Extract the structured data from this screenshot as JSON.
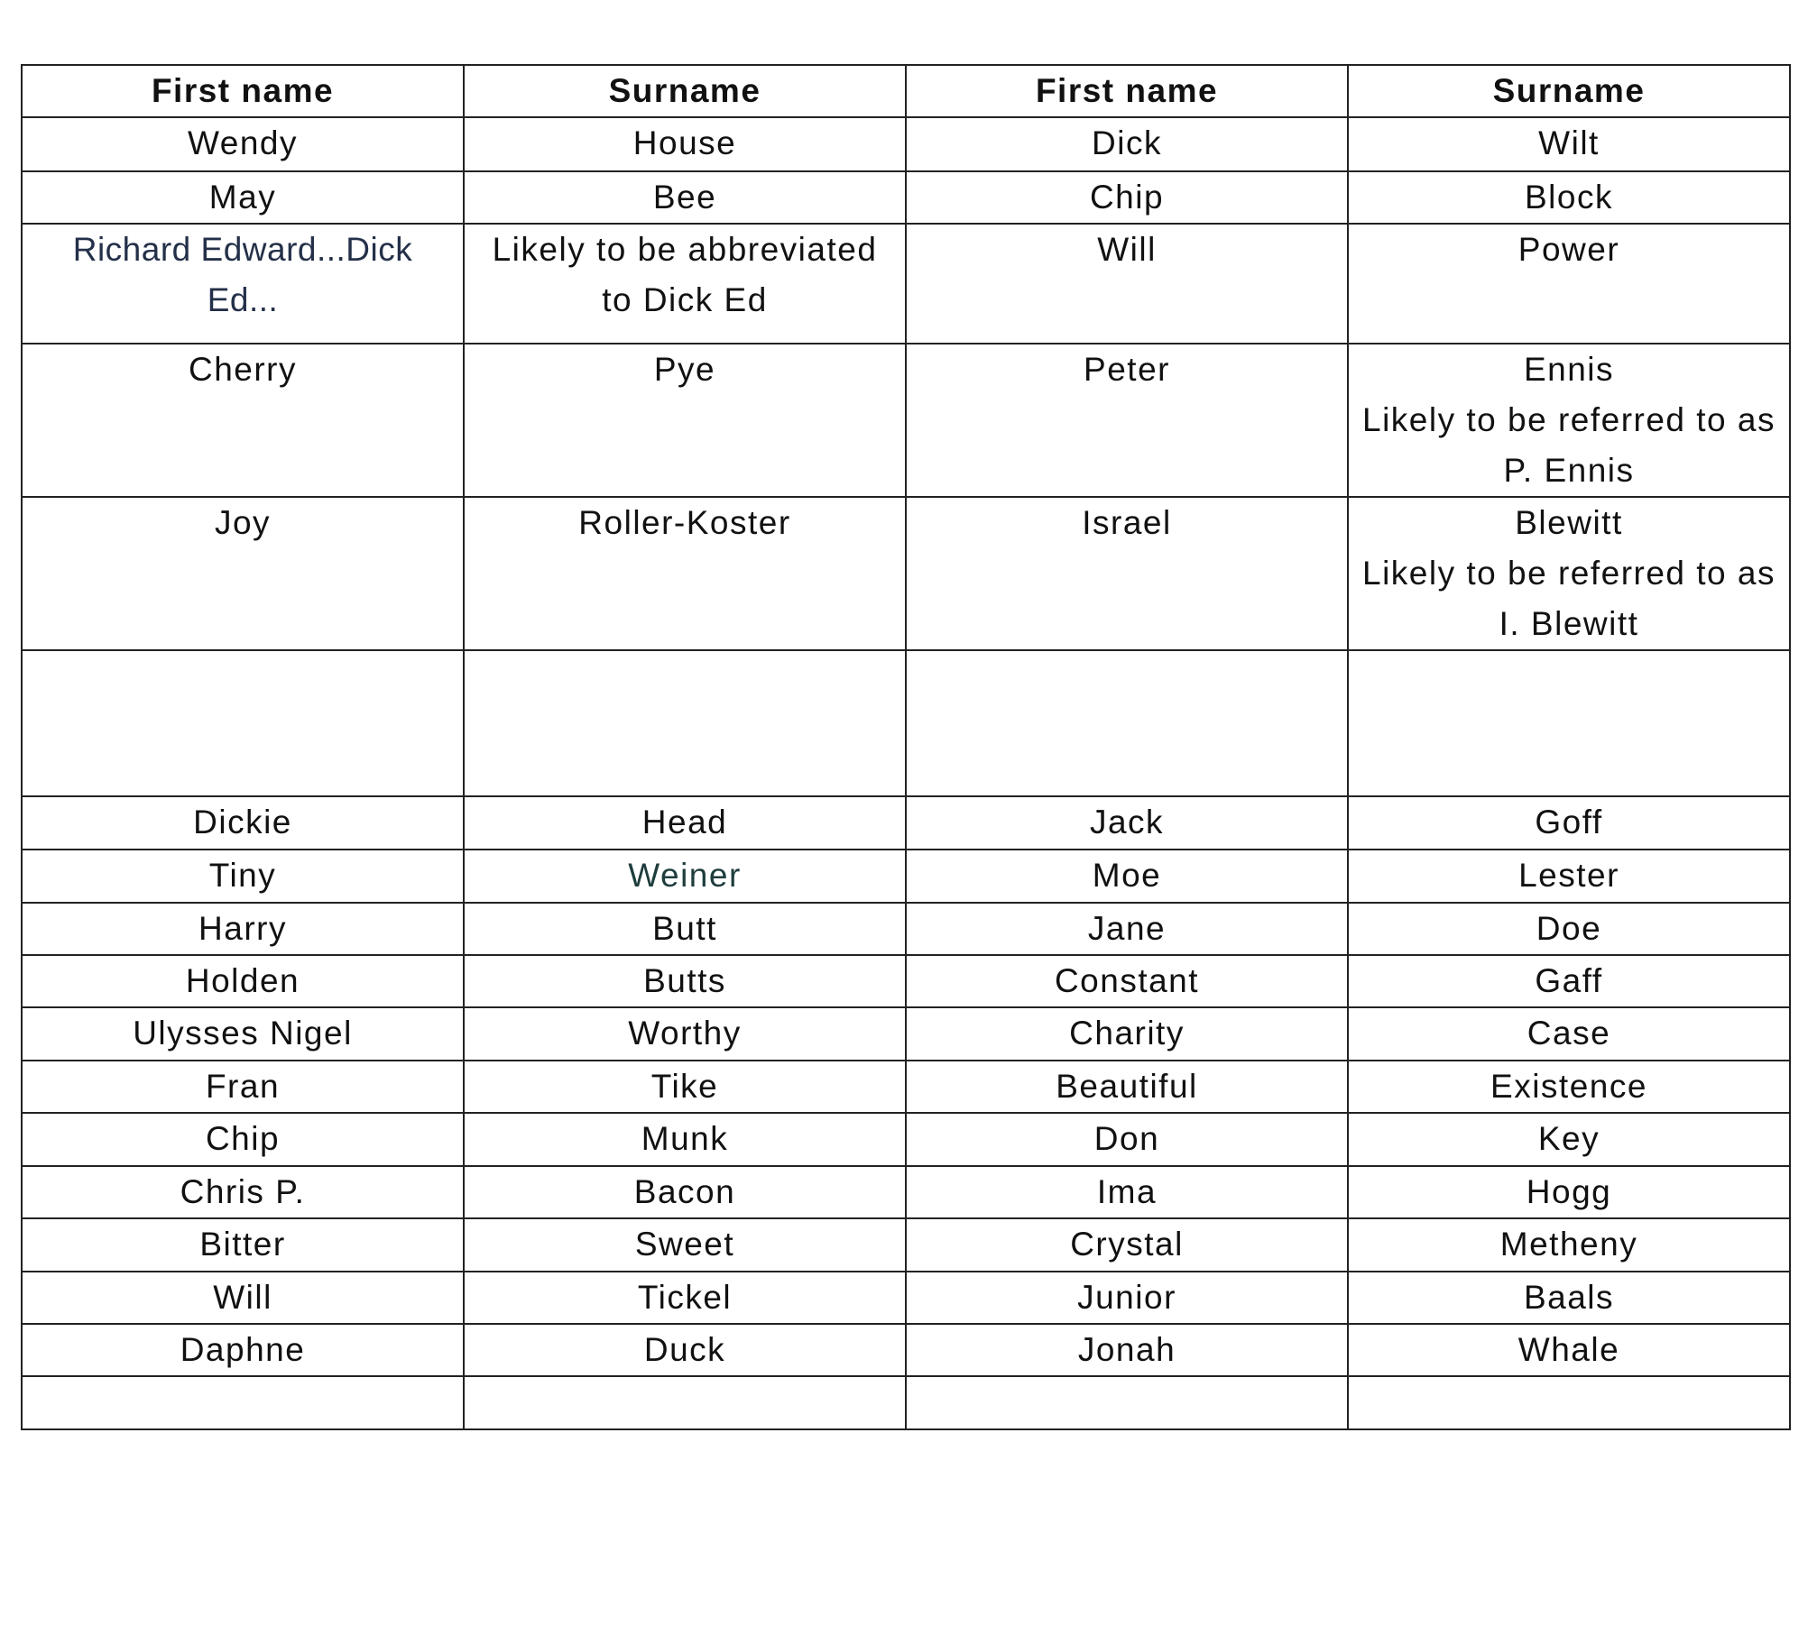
{
  "headers": [
    "First name",
    "Surname",
    "First name",
    "Surname"
  ],
  "rows": [
    [
      "Wendy",
      "House",
      "Dick",
      "Wilt"
    ],
    [
      "May",
      "Bee",
      "Chip",
      "Block"
    ],
    [
      "Richard Edward...Dick Ed...",
      "Likely to be abbreviated to Dick Ed",
      "Will",
      "Power"
    ],
    [
      "Cherry",
      "Pye",
      "Peter",
      "Ennis\nLikely to be referred to as P. Ennis"
    ],
    [
      "Joy",
      "Roller-Koster",
      "Israel",
      "Blewitt\nLikely to be referred to as I. Blewitt"
    ],
    [
      "",
      "",
      "",
      ""
    ],
    [
      "Dickie",
      "Head",
      "Jack",
      "Goff"
    ],
    [
      "Tiny",
      "Weiner",
      "Moe",
      "Lester"
    ],
    [
      "Harry",
      "Butt",
      "Jane",
      "Doe"
    ],
    [
      "Holden",
      "Butts",
      "Constant",
      "Gaff"
    ],
    [
      "Ulysses Nigel",
      "Worthy",
      "Charity",
      "Case"
    ],
    [
      "Fran",
      "Tike",
      "Beautiful",
      "Existence"
    ],
    [
      "Chip",
      "Munk",
      "Don",
      "Key"
    ],
    [
      "Chris P.",
      "Bacon",
      "Ima",
      "Hogg"
    ],
    [
      "Bitter",
      "Sweet",
      "Crystal",
      "Metheny"
    ],
    [
      "Will",
      "Tickel",
      "Junior",
      "Baals"
    ],
    [
      "Daphne",
      "Duck",
      "Jonah",
      "Whale"
    ],
    [
      "",
      "",
      "",
      ""
    ]
  ],
  "colors": {
    "border": "#222222",
    "text": "#111111",
    "navy_text": "#243049",
    "teal_text": "#1f3d3d"
  }
}
